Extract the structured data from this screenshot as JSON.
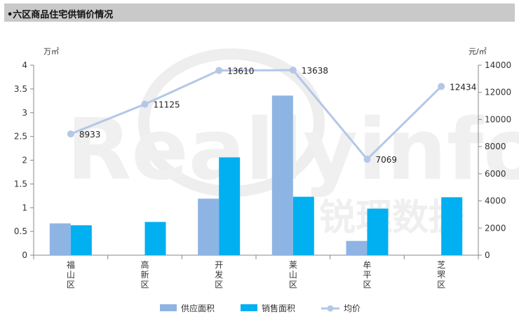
{
  "header": {
    "title": "•六区商品住宅供销价情况"
  },
  "watermark": {
    "latin": "Reallyinfo",
    "cjk": "锐理数据"
  },
  "colors": {
    "supply": "#8EB4E3",
    "sales": "#00B0F0",
    "price": "#B4C7E7",
    "axis": "#888888"
  },
  "chart_data": {
    "type": "bar",
    "categories": [
      "福山区",
      "高新区",
      "开发区",
      "莱山区",
      "牟平区",
      "芝罘区"
    ],
    "y_left": {
      "unit": "万㎡",
      "ylim": [
        0,
        4
      ],
      "ticks": [
        "0",
        "0.5",
        "1",
        "1.5",
        "2",
        "2.5",
        "3",
        "3.5",
        "4"
      ]
    },
    "y_right": {
      "unit": "元/㎡",
      "ylim": [
        0,
        14000
      ],
      "ticks": [
        "0",
        "2000",
        "4000",
        "6000",
        "8000",
        "10000",
        "12000",
        "14000"
      ]
    },
    "series": [
      {
        "name": "供应面积",
        "type": "bar",
        "axis": "left",
        "values": [
          0.67,
          null,
          1.19,
          3.36,
          0.3,
          null
        ]
      },
      {
        "name": "销售面积",
        "type": "bar",
        "axis": "left",
        "values": [
          0.63,
          0.7,
          2.06,
          1.23,
          0.98,
          1.22
        ]
      },
      {
        "name": "均价",
        "type": "line",
        "axis": "right",
        "values": [
          8933,
          11125,
          13610,
          13638,
          7069,
          12434
        ],
        "labels": [
          "8933",
          "11125",
          "13610",
          "13638",
          "7069",
          "12434"
        ]
      }
    ],
    "legend_position": "bottom",
    "grid": false
  }
}
